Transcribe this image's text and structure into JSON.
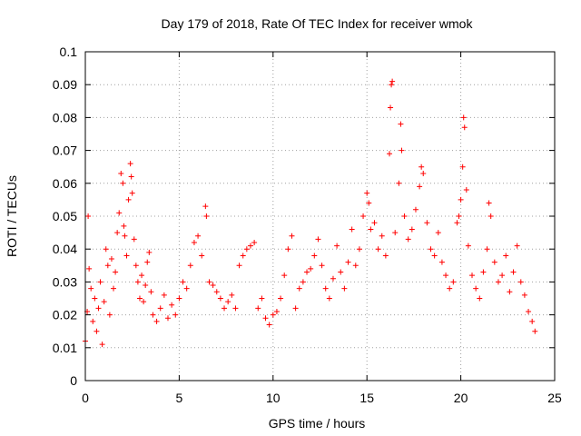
{
  "chart_data": {
    "type": "scatter",
    "title": "Day 179 of 2018, Rate Of TEC Index for receiver wmok",
    "xlabel": "GPS time / hours",
    "ylabel": "ROTI / TECUs",
    "xlim": [
      0,
      25
    ],
    "ylim": [
      0,
      0.1
    ],
    "xticks": [
      0,
      5,
      10,
      15,
      20,
      25
    ],
    "yticks": [
      0,
      0.01,
      0.02,
      0.03,
      0.04,
      0.05,
      0.06,
      0.07,
      0.08,
      0.09,
      0.1
    ],
    "xtick_labels": [
      "0",
      "5",
      "10",
      "15",
      "20",
      "25"
    ],
    "ytick_labels": [
      "0",
      "0.01",
      "0.02",
      "0.03",
      "0.04",
      "0.05",
      "0.06",
      "0.07",
      "0.08",
      "0.09",
      "0.1"
    ],
    "grid": true,
    "marker": "+",
    "marker_color": "#ff0000",
    "series": [
      {
        "points": [
          [
            0.0,
            0.012
          ],
          [
            0.1,
            0.021
          ],
          [
            0.15,
            0.05
          ],
          [
            0.2,
            0.034
          ],
          [
            0.3,
            0.028
          ],
          [
            0.4,
            0.018
          ],
          [
            0.5,
            0.025
          ],
          [
            0.6,
            0.015
          ],
          [
            0.7,
            0.022
          ],
          [
            0.8,
            0.03
          ],
          [
            0.9,
            0.011
          ],
          [
            1.0,
            0.024
          ],
          [
            1.1,
            0.04
          ],
          [
            1.2,
            0.035
          ],
          [
            1.3,
            0.02
          ],
          [
            1.4,
            0.037
          ],
          [
            1.5,
            0.028
          ],
          [
            1.6,
            0.033
          ],
          [
            1.7,
            0.045
          ],
          [
            1.8,
            0.051
          ],
          [
            1.9,
            0.063
          ],
          [
            2.0,
            0.06
          ],
          [
            2.05,
            0.047
          ],
          [
            2.1,
            0.044
          ],
          [
            2.2,
            0.038
          ],
          [
            2.3,
            0.055
          ],
          [
            2.4,
            0.066
          ],
          [
            2.45,
            0.062
          ],
          [
            2.5,
            0.057
          ],
          [
            2.6,
            0.043
          ],
          [
            2.7,
            0.035
          ],
          [
            2.8,
            0.03
          ],
          [
            2.9,
            0.025
          ],
          [
            3.0,
            0.032
          ],
          [
            3.1,
            0.024
          ],
          [
            3.2,
            0.029
          ],
          [
            3.3,
            0.036
          ],
          [
            3.4,
            0.039
          ],
          [
            3.5,
            0.027
          ],
          [
            3.6,
            0.02
          ],
          [
            3.8,
            0.018
          ],
          [
            4.0,
            0.022
          ],
          [
            4.2,
            0.026
          ],
          [
            4.4,
            0.019
          ],
          [
            4.6,
            0.023
          ],
          [
            4.8,
            0.02
          ],
          [
            5.0,
            0.025
          ],
          [
            5.2,
            0.03
          ],
          [
            5.4,
            0.028
          ],
          [
            5.6,
            0.035
          ],
          [
            5.8,
            0.042
          ],
          [
            6.0,
            0.044
          ],
          [
            6.2,
            0.038
          ],
          [
            6.4,
            0.053
          ],
          [
            6.45,
            0.05
          ],
          [
            6.6,
            0.03
          ],
          [
            6.8,
            0.029
          ],
          [
            7.0,
            0.027
          ],
          [
            7.2,
            0.025
          ],
          [
            7.4,
            0.022
          ],
          [
            7.6,
            0.024
          ],
          [
            7.8,
            0.026
          ],
          [
            8.0,
            0.022
          ],
          [
            8.2,
            0.035
          ],
          [
            8.4,
            0.038
          ],
          [
            8.6,
            0.04
          ],
          [
            8.8,
            0.041
          ],
          [
            9.0,
            0.042
          ],
          [
            9.2,
            0.022
          ],
          [
            9.4,
            0.025
          ],
          [
            9.6,
            0.019
          ],
          [
            9.8,
            0.017
          ],
          [
            10.0,
            0.02
          ],
          [
            10.2,
            0.021
          ],
          [
            10.4,
            0.025
          ],
          [
            10.6,
            0.032
          ],
          [
            10.8,
            0.04
          ],
          [
            11.0,
            0.044
          ],
          [
            11.2,
            0.022
          ],
          [
            11.4,
            0.028
          ],
          [
            11.6,
            0.03
          ],
          [
            11.8,
            0.033
          ],
          [
            12.0,
            0.034
          ],
          [
            12.2,
            0.038
          ],
          [
            12.4,
            0.043
          ],
          [
            12.6,
            0.035
          ],
          [
            12.8,
            0.028
          ],
          [
            13.0,
            0.025
          ],
          [
            13.2,
            0.031
          ],
          [
            13.4,
            0.041
          ],
          [
            13.6,
            0.033
          ],
          [
            13.8,
            0.028
          ],
          [
            14.0,
            0.036
          ],
          [
            14.2,
            0.046
          ],
          [
            14.4,
            0.035
          ],
          [
            14.6,
            0.04
          ],
          [
            14.8,
            0.05
          ],
          [
            15.0,
            0.057
          ],
          [
            15.1,
            0.054
          ],
          [
            15.2,
            0.046
          ],
          [
            15.4,
            0.048
          ],
          [
            15.6,
            0.04
          ],
          [
            15.8,
            0.044
          ],
          [
            16.0,
            0.038
          ],
          [
            16.2,
            0.069
          ],
          [
            16.25,
            0.083
          ],
          [
            16.3,
            0.09
          ],
          [
            16.35,
            0.091
          ],
          [
            16.5,
            0.045
          ],
          [
            16.7,
            0.06
          ],
          [
            16.8,
            0.078
          ],
          [
            16.85,
            0.07
          ],
          [
            17.0,
            0.05
          ],
          [
            17.2,
            0.043
          ],
          [
            17.4,
            0.046
          ],
          [
            17.6,
            0.052
          ],
          [
            17.8,
            0.059
          ],
          [
            17.9,
            0.065
          ],
          [
            18.0,
            0.063
          ],
          [
            18.2,
            0.048
          ],
          [
            18.4,
            0.04
          ],
          [
            18.6,
            0.038
          ],
          [
            18.8,
            0.045
          ],
          [
            19.0,
            0.036
          ],
          [
            19.2,
            0.032
          ],
          [
            19.4,
            0.028
          ],
          [
            19.6,
            0.03
          ],
          [
            19.8,
            0.048
          ],
          [
            19.9,
            0.05
          ],
          [
            20.0,
            0.055
          ],
          [
            20.1,
            0.065
          ],
          [
            20.15,
            0.08
          ],
          [
            20.2,
            0.077
          ],
          [
            20.3,
            0.058
          ],
          [
            20.4,
            0.041
          ],
          [
            20.6,
            0.032
          ],
          [
            20.8,
            0.028
          ],
          [
            21.0,
            0.025
          ],
          [
            21.2,
            0.033
          ],
          [
            21.4,
            0.04
          ],
          [
            21.5,
            0.054
          ],
          [
            21.6,
            0.05
          ],
          [
            21.8,
            0.036
          ],
          [
            22.0,
            0.03
          ],
          [
            22.2,
            0.032
          ],
          [
            22.4,
            0.038
          ],
          [
            22.6,
            0.027
          ],
          [
            22.8,
            0.033
          ],
          [
            23.0,
            0.041
          ],
          [
            23.2,
            0.03
          ],
          [
            23.4,
            0.026
          ],
          [
            23.6,
            0.021
          ],
          [
            23.8,
            0.018
          ],
          [
            23.95,
            0.015
          ]
        ]
      }
    ]
  }
}
